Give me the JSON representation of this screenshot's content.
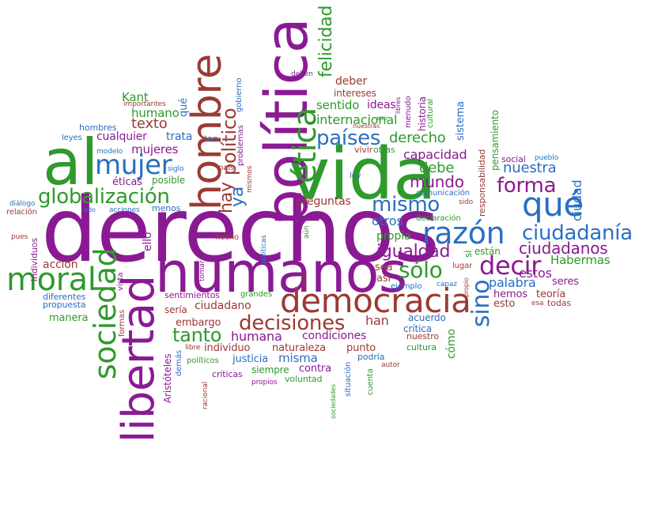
{
  "colors": {
    "purple": "#8a1a93",
    "green": "#2f9a2c",
    "blue": "#2a6fc2",
    "red": "#9b3a34"
  },
  "words": [
    {
      "text": "derechos",
      "color": "purple"
    },
    {
      "text": "vida",
      "color": "green"
    },
    {
      "text": "política",
      "color": "purple"
    },
    {
      "text": "humanos",
      "color": "purple"
    },
    {
      "text": "libertad",
      "color": "purple"
    },
    {
      "text": "al",
      "color": "green"
    },
    {
      "text": "hombre",
      "color": "red"
    },
    {
      "text": "democracia",
      "color": "red"
    },
    {
      "text": "moral",
      "color": "green"
    },
    {
      "text": "sociedad",
      "color": "green"
    },
    {
      "text": "ética",
      "color": "green"
    },
    {
      "text": "qué",
      "color": "blue"
    },
    {
      "text": "razón",
      "color": "blue"
    },
    {
      "text": "mujer",
      "color": "blue"
    },
    {
      "text": "decisiones",
      "color": "red"
    },
    {
      "text": "globalización",
      "color": "green"
    },
    {
      "text": "decir",
      "color": "purple"
    },
    {
      "text": "ciudadanía",
      "color": "blue"
    },
    {
      "text": "sino",
      "color": "blue"
    },
    {
      "text": "mismo",
      "color": "blue"
    },
    {
      "text": "países",
      "color": "blue"
    },
    {
      "text": "forma",
      "color": "purple"
    },
    {
      "text": "sólo",
      "color": "green"
    },
    {
      "text": "igualdad",
      "color": "purple"
    },
    {
      "text": "felicidad",
      "color": "green"
    },
    {
      "text": "político",
      "color": "red"
    },
    {
      "text": "hay",
      "color": "red"
    },
    {
      "text": "ya",
      "color": "blue"
    },
    {
      "text": "tanto",
      "color": "green"
    },
    {
      "text": "ciudadanos",
      "color": "purple"
    },
    {
      "text": "texto",
      "color": "red"
    },
    {
      "text": "mundo",
      "color": "purple"
    },
    {
      "text": "derecho",
      "color": "green"
    },
    {
      "text": "nuestra",
      "color": "blue"
    },
    {
      "text": "debe",
      "color": "green"
    },
    {
      "text": "capacidad",
      "color": "purple"
    },
    {
      "text": "internacional",
      "color": "green"
    },
    {
      "text": "sentido",
      "color": "green"
    },
    {
      "text": "ideas",
      "color": "purple"
    },
    {
      "text": "deber",
      "color": "red"
    },
    {
      "text": "intereses",
      "color": "red"
    },
    {
      "text": "Kant",
      "color": "green"
    },
    {
      "text": "humano",
      "color": "green"
    },
    {
      "text": "mujeres",
      "color": "purple"
    },
    {
      "text": "cualquier",
      "color": "purple"
    },
    {
      "text": "trata",
      "color": "blue"
    },
    {
      "text": "hombres",
      "color": "blue"
    },
    {
      "text": "leyes",
      "color": "blue"
    },
    {
      "text": "éticas",
      "color": "purple"
    },
    {
      "text": "posible",
      "color": "green"
    },
    {
      "text": "menos",
      "color": "blue"
    },
    {
      "text": "preguntas",
      "color": "red"
    },
    {
      "text": "otros",
      "color": "blue"
    },
    {
      "text": "estos",
      "color": "purple"
    },
    {
      "text": "Habermas",
      "color": "green"
    },
    {
      "text": "palabra",
      "color": "blue"
    },
    {
      "text": "seres",
      "color": "purple"
    },
    {
      "text": "hemos",
      "color": "purple"
    },
    {
      "text": "teoría",
      "color": "red"
    },
    {
      "text": "esto",
      "color": "red"
    },
    {
      "text": "todas",
      "color": "red"
    },
    {
      "text": "propia",
      "color": "green"
    },
    {
      "text": "acción",
      "color": "red"
    },
    {
      "text": "diferentes",
      "color": "blue"
    },
    {
      "text": "propuesta",
      "color": "blue"
    },
    {
      "text": "manera",
      "color": "green"
    },
    {
      "text": "sentimientos",
      "color": "purple"
    },
    {
      "text": "grandes",
      "color": "green"
    },
    {
      "text": "ciudadano",
      "color": "red"
    },
    {
      "text": "sería",
      "color": "red"
    },
    {
      "text": "embargo",
      "color": "red"
    },
    {
      "text": "humana",
      "color": "purple"
    },
    {
      "text": "condiciones",
      "color": "purple"
    },
    {
      "text": "han",
      "color": "red"
    },
    {
      "text": "acuerdo",
      "color": "blue"
    },
    {
      "text": "crítica",
      "color": "blue"
    },
    {
      "text": "nuestro",
      "color": "red"
    },
    {
      "text": "individuo",
      "color": "red"
    },
    {
      "text": "naturaleza",
      "color": "red"
    },
    {
      "text": "punto",
      "color": "red"
    },
    {
      "text": "misma",
      "color": "blue"
    },
    {
      "text": "justicia",
      "color": "blue"
    },
    {
      "text": "contra",
      "color": "purple"
    },
    {
      "text": "siempre",
      "color": "green"
    },
    {
      "text": "voluntad",
      "color": "green"
    },
    {
      "text": "podría",
      "color": "blue"
    },
    {
      "text": "cultura",
      "color": "green"
    },
    {
      "text": "autor",
      "color": "red"
    },
    {
      "text": "críticas",
      "color": "purple"
    },
    {
      "text": "propios",
      "color": "purple"
    },
    {
      "text": "políticos",
      "color": "green"
    },
    {
      "text": "libre",
      "color": "red"
    },
    {
      "text": "Aristóteles",
      "color": "purple"
    },
    {
      "text": "demás",
      "color": "blue"
    },
    {
      "text": "racional",
      "color": "red"
    },
    {
      "text": "ciudad",
      "color": "blue"
    },
    {
      "text": "cómo",
      "color": "green"
    },
    {
      "text": "sea",
      "color": "red"
    },
    {
      "text": "así",
      "color": "red"
    },
    {
      "text": "ejemplo",
      "color": "blue"
    },
    {
      "text": "lugar",
      "color": "red"
    },
    {
      "text": "están",
      "color": "green"
    },
    {
      "text": "si",
      "color": "green"
    },
    {
      "text": "responsabilidad",
      "color": "red"
    },
    {
      "text": "pensamiento",
      "color": "green"
    },
    {
      "text": "sistema",
      "color": "blue"
    },
    {
      "text": "historia",
      "color": "purple"
    },
    {
      "text": "cultural",
      "color": "green"
    },
    {
      "text": "menudo",
      "color": "purple"
    },
    {
      "text": "libres",
      "color": "purple"
    },
    {
      "text": "social",
      "color": "purple"
    },
    {
      "text": "pueblo",
      "color": "blue"
    },
    {
      "text": "vivir",
      "color": "red"
    },
    {
      "text": "otras",
      "color": "green"
    },
    {
      "text": "nuestras",
      "color": "red"
    },
    {
      "text": "eso",
      "color": "green"
    },
    {
      "text": "deben",
      "color": "purple"
    },
    {
      "text": "comunicación",
      "color": "blue"
    },
    {
      "text": "declaración",
      "color": "green"
    },
    {
      "text": "sido",
      "color": "red"
    },
    {
      "text": "ley",
      "color": "blue"
    },
    {
      "text": "gobierno",
      "color": "blue"
    },
    {
      "text": "problemas",
      "color": "purple"
    },
    {
      "text": "mismos",
      "color": "red"
    },
    {
      "text": "tan",
      "color": "blue"
    },
    {
      "text": "país",
      "color": "red"
    },
    {
      "text": "qué",
      "color": "blue"
    },
    {
      "text": "importantes",
      "color": "red"
    },
    {
      "text": "siglo",
      "color": "blue"
    },
    {
      "text": "modelo",
      "color": "blue"
    },
    {
      "text": "diálogo",
      "color": "blue"
    },
    {
      "text": "relación",
      "color": "red"
    },
    {
      "text": "lado",
      "color": "blue"
    },
    {
      "text": "acciones",
      "color": "blue"
    },
    {
      "text": "pues",
      "color": "red"
    },
    {
      "text": "individuos",
      "color": "purple"
    },
    {
      "text": "ello",
      "color": "purple"
    },
    {
      "text": "hecho",
      "color": "red"
    },
    {
      "text": "políticas",
      "color": "blue"
    },
    {
      "text": "aún",
      "color": "green"
    },
    {
      "text": "tomar",
      "color": "purple"
    },
    {
      "text": "caso",
      "color": "red"
    },
    {
      "text": "formas",
      "color": "red"
    },
    {
      "text": "vista",
      "color": "purple"
    },
    {
      "text": "capaz",
      "color": "blue"
    },
    {
      "text": "propio",
      "color": "red"
    },
    {
      "text": "esa",
      "color": "red"
    },
    {
      "text": "situación",
      "color": "blue"
    },
    {
      "text": "cuenta",
      "color": "green"
    },
    {
      "text": "sociedades",
      "color": "green"
    },
    {
      "text": "estado",
      "color": "red"
    }
  ]
}
